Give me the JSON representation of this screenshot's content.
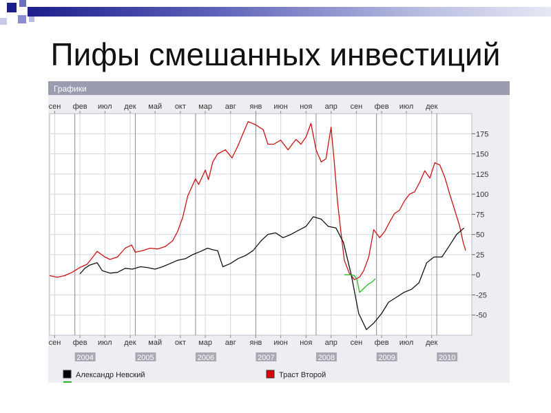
{
  "slide": {
    "title": "Пифы смешанных инвестиций"
  },
  "chart_data": {
    "type": "line",
    "title": "Графики",
    "x_range": [
      "2003-08-01",
      "2010-08-01"
    ],
    "ylim": [
      -75,
      200
    ],
    "yticks": [
      175,
      150,
      125,
      100,
      75,
      50,
      25,
      0,
      -25,
      -50
    ],
    "grid": true,
    "legend_position": "bottom",
    "month_ticks": [
      {
        "date": "2003-09-01",
        "label": "сен"
      },
      {
        "date": "2004-02-01",
        "label": "фев"
      },
      {
        "date": "2004-07-01",
        "label": "июл"
      },
      {
        "date": "2004-12-01",
        "label": "дек"
      },
      {
        "date": "2005-05-01",
        "label": "май"
      },
      {
        "date": "2005-10-01",
        "label": "окт"
      },
      {
        "date": "2006-03-01",
        "label": "мар"
      },
      {
        "date": "2006-08-01",
        "label": "авг"
      },
      {
        "date": "2007-01-01",
        "label": "янв"
      },
      {
        "date": "2007-06-01",
        "label": "июн"
      },
      {
        "date": "2007-11-01",
        "label": "ноя"
      },
      {
        "date": "2008-04-01",
        "label": "апр"
      },
      {
        "date": "2008-09-01",
        "label": "сен"
      },
      {
        "date": "2009-02-01",
        "label": "фев"
      },
      {
        "date": "2009-07-01",
        "label": "июл"
      },
      {
        "date": "2009-12-01",
        "label": "дек"
      }
    ],
    "year_ticks": [
      {
        "date": "2004-01-01",
        "label": "2004"
      },
      {
        "date": "2005-01-01",
        "label": "2005"
      },
      {
        "date": "2006-01-01",
        "label": "2006"
      },
      {
        "date": "2007-01-01",
        "label": "2007"
      },
      {
        "date": "2008-01-01",
        "label": "2008"
      },
      {
        "date": "2009-01-01",
        "label": "2009"
      },
      {
        "date": "2010-01-01",
        "label": "2010"
      }
    ],
    "series": [
      {
        "name": "Траст Второй",
        "color": "#cc1111",
        "legend_color": "#dd0000",
        "x": [
          "2003-08-01",
          "2003-09-15",
          "2003-11-01",
          "2003-12-15",
          "2004-02-01",
          "2004-03-15",
          "2004-04-15",
          "2004-05-15",
          "2004-07-01",
          "2004-08-01",
          "2004-09-15",
          "2004-11-01",
          "2004-12-10",
          "2005-01-01",
          "2005-02-15",
          "2005-04-01",
          "2005-05-15",
          "2005-07-01",
          "2005-08-15",
          "2005-09-15",
          "2005-10-15",
          "2005-11-15",
          "2006-01-01",
          "2006-01-20",
          "2006-03-01",
          "2006-03-20",
          "2006-04-15",
          "2006-05-15",
          "2006-07-01",
          "2006-08-10",
          "2006-09-15",
          "2006-10-15",
          "2006-11-15",
          "2007-01-01",
          "2007-02-15",
          "2007-03-15",
          "2007-04-20",
          "2007-06-01",
          "2007-07-15",
          "2007-09-01",
          "2007-10-01",
          "2007-11-01",
          "2007-12-01",
          "2008-01-01",
          "2008-02-01",
          "2008-03-01",
          "2008-04-01",
          "2008-04-20",
          "2008-05-10",
          "2008-06-01",
          "2008-06-20",
          "2008-07-20",
          "2008-08-20",
          "2008-09-20",
          "2008-10-15",
          "2008-11-15",
          "2008-12-15",
          "2009-01-20",
          "2009-02-20",
          "2009-03-20",
          "2009-04-20",
          "2009-05-20",
          "2009-06-20",
          "2009-07-20",
          "2009-08-20",
          "2009-09-20",
          "2009-10-20",
          "2009-11-20",
          "2009-12-20",
          "2010-01-20",
          "2010-02-20",
          "2010-03-20",
          "2010-04-20",
          "2010-05-20",
          "2010-06-10",
          "2010-06-25"
        ],
        "y": [
          -1,
          -3,
          -1,
          3,
          9,
          13,
          21,
          29,
          22,
          19,
          22,
          33,
          37,
          28,
          30,
          33,
          32,
          35,
          42,
          54,
          71,
          98,
          119,
          112,
          130,
          118,
          140,
          150,
          155,
          145,
          160,
          175,
          190,
          186,
          180,
          162,
          162,
          167,
          155,
          168,
          162,
          171,
          188,
          155,
          140,
          144,
          183,
          140,
          90,
          50,
          18,
          2,
          -6,
          -3,
          5,
          22,
          56,
          46,
          54,
          65,
          76,
          80,
          92,
          100,
          103,
          115,
          129,
          120,
          139,
          136,
          120,
          100,
          80,
          60,
          40,
          30
        ],
        "x_override": null
      },
      {
        "name": "Александр Невский",
        "color": "#111111",
        "legend_color": "#000000",
        "x": [
          "2003-08-01",
          "2003-09-15",
          "2003-11-01",
          "2003-12-15",
          "2004-02-01",
          "2004-03-01",
          "2004-04-01",
          "2004-05-15",
          "2004-06-15",
          "2004-08-01",
          "2004-09-15",
          "2004-11-01",
          "2004-12-15",
          "2005-02-01",
          "2005-03-15",
          "2005-05-01",
          "2005-06-15",
          "2005-08-01",
          "2005-09-15",
          "2005-11-01",
          "2005-12-15",
          "2006-02-01",
          "2006-03-15",
          "2006-04-15",
          "2006-05-15",
          "2006-06-15",
          "2006-08-01",
          "2006-09-15",
          "2006-11-01",
          "2006-12-15",
          "2007-02-01",
          "2007-03-15",
          "2007-05-01",
          "2007-06-15",
          "2007-08-01",
          "2007-09-15",
          "2007-11-01",
          "2007-12-15",
          "2008-02-01",
          "2008-03-15",
          "2008-05-01",
          "2008-06-15",
          "2008-08-01",
          "2008-09-15",
          "2008-11-01",
          "2008-12-15",
          "2009-02-01",
          "2009-03-15",
          "2009-05-01",
          "2009-06-15",
          "2009-08-01",
          "2009-09-15",
          "2009-11-01",
          "2009-12-15",
          "2010-02-01",
          "2010-03-15",
          "2010-05-01",
          "2010-06-15"
        ],
        "y": [
          null,
          null,
          null,
          null,
          1,
          8,
          12,
          15,
          5,
          2,
          3,
          8,
          7,
          10,
          9,
          7,
          10,
          14,
          18,
          20,
          25,
          29,
          33,
          31,
          30,
          10,
          14,
          20,
          24,
          30,
          42,
          50,
          52,
          46,
          50,
          55,
          60,
          72,
          69,
          60,
          58,
          40,
          0,
          -48,
          -68,
          -60,
          -48,
          -34,
          -28,
          -22,
          -18,
          -10,
          15,
          22,
          22,
          35,
          50,
          58
        ]
      },
      {
        "name": "",
        "color": "#22bb22",
        "x": [
          "2008-06-20",
          "2008-07-20",
          "2008-08-20",
          "2008-09-05",
          "2008-09-20",
          "2008-10-15",
          "2008-11-10",
          "2008-12-05",
          "2008-12-25"
        ],
        "y": [
          0,
          0,
          -1,
          -6,
          -22,
          -17,
          -12,
          -9,
          -5
        ]
      }
    ],
    "legend": [
      {
        "label": "Александр Невский",
        "color": "#000000"
      },
      {
        "label": "Траст Второй",
        "color": "#dd0000"
      },
      {
        "label": "",
        "color": "#22bb22"
      }
    ]
  }
}
